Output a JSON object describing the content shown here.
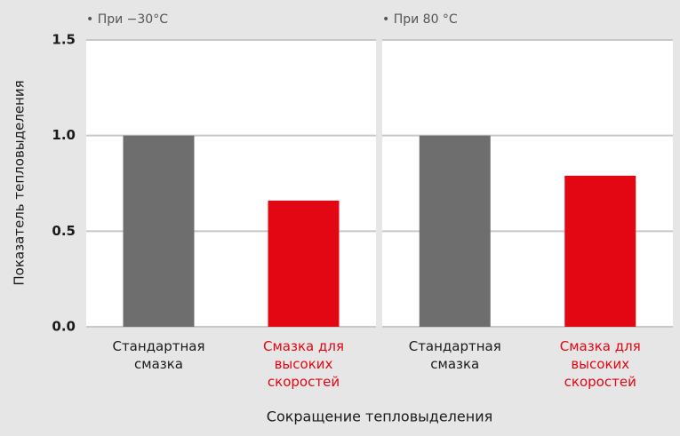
{
  "chart_data": {
    "type": "bar",
    "ylabel": "Показатель тепловыделения",
    "xlabel": "Сокращение тепловыделения",
    "ylim": [
      0,
      1.5
    ],
    "yticks": [
      {
        "value": 0,
        "label": "0.0"
      },
      0.5,
      {
        "value": 1,
        "label": "1.0"
      },
      1.5
    ],
    "grid": true,
    "colors": [
      "#6e6e6e",
      "#e30613"
    ],
    "label_colors": [
      "#1a1a1a",
      "#e30613"
    ],
    "panels": [
      {
        "subtitle": "• При −30°C",
        "categories": [
          "Стандартная смазка",
          "Смазка для высоких скоростей"
        ],
        "values": [
          1.0,
          0.66
        ]
      },
      {
        "subtitle": "• При 80 °C",
        "categories": [
          "Стандартная смазка",
          "Смазка для высоких скоростей"
        ],
        "values": [
          1.0,
          0.79
        ]
      }
    ]
  }
}
